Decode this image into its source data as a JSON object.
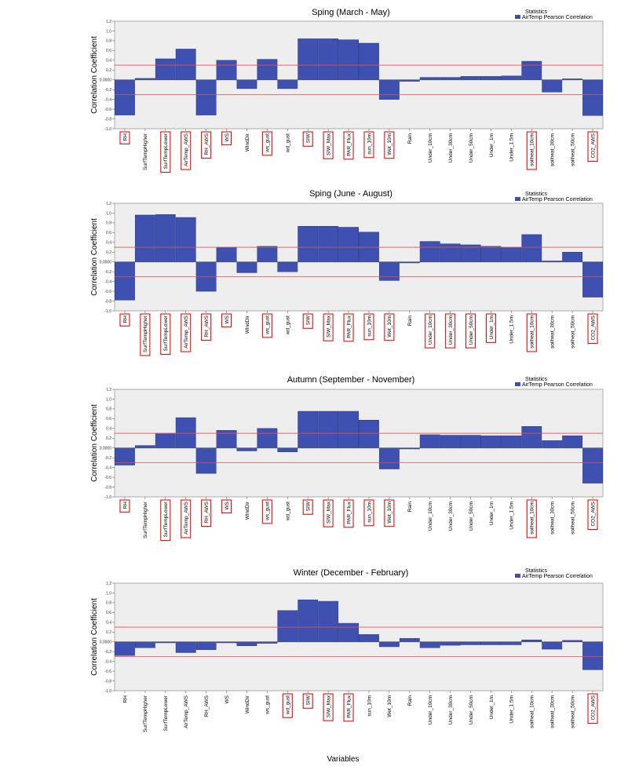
{
  "chart_data": [
    {
      "type": "bar",
      "title": "Sping (March - May)",
      "legend_title": "Statistics",
      "series": [
        {
          "name": "AirTemp Pearson Correlation",
          "values": [
            -0.72,
            0.03,
            0.43,
            0.63,
            -0.72,
            0.4,
            -0.18,
            0.42,
            -0.18,
            0.84,
            0.84,
            0.82,
            0.75,
            -0.4,
            -0.03,
            0.05,
            0.05,
            0.07,
            0.07,
            0.08,
            0.38,
            -0.25,
            0.02,
            -0.73
          ]
        }
      ],
      "categories": [
        "RH",
        "SurfTempHigher",
        "SurfTempLower",
        "AirTemp_AWS",
        "RH_AWS",
        "WS",
        "WindDir",
        "ws_gust",
        "wd_gust",
        "SIW",
        "SIW_Max",
        "PAR_Flux",
        "sun_10m",
        "Wet_10m",
        "Rain",
        "Under_10cm",
        "Under_30cm",
        "Under_50cm",
        "Under_1m",
        "Under_1.5m",
        "soilheat_10cm",
        "soilheat_30cm",
        "soilheat_50cm",
        "CO2_AWS"
      ],
      "highlighted": [
        "RH",
        "SurfTempLower",
        "AirTemp_AWS",
        "RH_AWS",
        "WS",
        "ws_gust",
        "SIW",
        "SIW_Max",
        "PAR_Flux",
        "sun_10m",
        "Wet_10m",
        "soilheat_10cm",
        "CO2_AWS"
      ],
      "xlabel": "Variables",
      "ylabel": "Correlation Coefficient",
      "ylim": [
        -1.0,
        1.2
      ],
      "yticks": [
        "1.2",
        "1.0",
        "0.8",
        "0.6",
        "0.4",
        "0.2",
        "0.0000",
        "-0.2",
        "-0.4",
        "-0.6",
        "-0.8",
        "-1.0"
      ],
      "reference_lines": [
        0.3,
        -0.3
      ],
      "colors": {
        "bar": "#3f51b0",
        "reference": "#e05050",
        "highlight": "#e01010",
        "plot_bg": "#eeeeee"
      }
    },
    {
      "type": "bar",
      "title": "Sping (June - August)",
      "legend_title": "Statistics",
      "series": [
        {
          "name": "AirTemp Pearson Correlation",
          "values": [
            -0.78,
            0.96,
            0.97,
            0.91,
            -0.6,
            0.3,
            -0.22,
            0.32,
            -0.2,
            0.73,
            0.73,
            0.71,
            0.61,
            -0.38,
            -0.02,
            0.42,
            0.37,
            0.35,
            0.32,
            0.3,
            0.56,
            0.02,
            0.2,
            -0.72
          ]
        }
      ],
      "categories": [
        "RH",
        "SurfTempHigher",
        "SurfTempLower",
        "AirTemp_AWS",
        "RH_AWS",
        "WS",
        "WindDir",
        "ws_gust",
        "wd_gust",
        "SIW",
        "SIW_Max",
        "PAR_Flux",
        "sun_10m",
        "Wet_10m",
        "Rain",
        "Under_10cm",
        "Under_30cm",
        "Under_50cm",
        "Under_1m",
        "Under_1.5m",
        "soilheat_10cm",
        "soilheat_30cm",
        "soilheat_50cm",
        "CO2_AWS"
      ],
      "highlighted": [
        "RH",
        "SurfTempHigher",
        "SurfTempLower",
        "AirTemp_AWS",
        "RH_AWS",
        "WS",
        "ws_gust",
        "SIW",
        "SIW_Max",
        "PAR_Flux",
        "sun_10m",
        "Wet_10m",
        "Under_10cm",
        "Under_30cm",
        "Under_50cm",
        "Under_1m",
        "soilheat_10cm",
        "CO2_AWS"
      ],
      "xlabel": "Variables",
      "ylabel": "Correlation Coefficient",
      "ylim": [
        -1.0,
        1.2
      ],
      "yticks": [
        "1.2",
        "1.0",
        "0.8",
        "0.6",
        "0.4",
        "0.2",
        "0.0000",
        "-0.2",
        "-0.4",
        "-0.6",
        "-0.8",
        "-1.0"
      ],
      "reference_lines": [
        0.3,
        -0.3
      ],
      "colors": {
        "bar": "#3f51b0",
        "reference": "#e05050",
        "highlight": "#e01010",
        "plot_bg": "#eeeeee"
      }
    },
    {
      "type": "bar",
      "title": "Autumn (September - November)",
      "legend_title": "Statistics",
      "series": [
        {
          "name": "AirTemp Pearson Correlation",
          "values": [
            -0.35,
            0.05,
            0.3,
            0.62,
            -0.52,
            0.36,
            -0.06,
            0.4,
            -0.08,
            0.75,
            0.75,
            0.75,
            0.57,
            -0.43,
            -0.02,
            0.27,
            0.26,
            0.26,
            0.25,
            0.25,
            0.44,
            0.15,
            0.25,
            -0.72
          ]
        }
      ],
      "categories": [
        "RH",
        "SurfTempHigher",
        "SurfTempLower",
        "AirTemp_AWS",
        "RH_AWS",
        "WS",
        "WindDir",
        "ws_gust",
        "wd_gust",
        "SIW",
        "SIW_Max",
        "PAR_Flux",
        "sun_10m",
        "Wet_10m",
        "Rain",
        "Under_10cm",
        "Under_30cm",
        "Under_50cm",
        "Under_1m",
        "Under_1.5m",
        "soilheat_10cm",
        "soilheat_30cm",
        "soilheat_50cm",
        "CO2_AWS"
      ],
      "highlighted": [
        "RH",
        "SurfTempLower",
        "AirTemp_AWS",
        "RH_AWS",
        "WS",
        "ws_gust",
        "SIW",
        "SIW_Max",
        "PAR_Flux",
        "sun_10m",
        "Wet_10m",
        "soilheat_10cm",
        "CO2_AWS"
      ],
      "xlabel": "Variables",
      "ylabel": "Correlation Coefficient",
      "ylim": [
        -1.0,
        1.2
      ],
      "yticks": [
        "1.2",
        "1.0",
        "0.8",
        "0.6",
        "0.4",
        "0.2",
        "0.0000",
        "-0.2",
        "-0.4",
        "-0.6",
        "-0.8",
        "-1.0"
      ],
      "reference_lines": [
        0.3,
        -0.3
      ],
      "colors": {
        "bar": "#3f51b0",
        "reference": "#e05050",
        "highlight": "#e01010",
        "plot_bg": "#eeeeee"
      }
    },
    {
      "type": "bar",
      "title": "Winter (December - February)",
      "legend_title": "Statistics",
      "series": [
        {
          "name": "AirTemp Pearson Correlation",
          "values": [
            -0.28,
            -0.12,
            -0.02,
            -0.22,
            -0.16,
            -0.02,
            -0.08,
            -0.03,
            0.64,
            0.86,
            0.83,
            0.38,
            0.15,
            -0.1,
            0.07,
            -0.12,
            -0.07,
            -0.06,
            -0.06,
            -0.06,
            0.04,
            -0.15,
            0.03,
            -0.57
          ]
        }
      ],
      "categories": [
        "RH",
        "SurfTempHigher",
        "SurfTempLower",
        "AirTemp_AWS",
        "RH_AWS",
        "WS",
        "WindDir",
        "ws_gust",
        "wd_gust",
        "SIW",
        "SIW_Max",
        "PAR_Flux",
        "sun_10m",
        "Wet_10m",
        "Rain",
        "Under_10cm",
        "Under_30cm",
        "Under_50cm",
        "Under_1m",
        "Under_1.5m",
        "soilheat_10cm",
        "soilheat_30cm",
        "soilheat_50cm",
        "CO2_AWS"
      ],
      "highlighted": [
        "wd_gust",
        "SIW",
        "SIW_Max",
        "PAR_Flux",
        "CO2_AWS"
      ],
      "xlabel": "Variables",
      "ylabel": "Correlation Coefficient",
      "ylim": [
        -1.0,
        1.2
      ],
      "yticks": [
        "1.2",
        "1.0",
        "0.8",
        "0.6",
        "0.4",
        "0.2",
        "0.0000",
        "-0.2",
        "-0.4",
        "-0.6",
        "-0.8",
        "-1.0"
      ],
      "reference_lines": [
        0.3,
        -0.3
      ],
      "colors": {
        "bar": "#3f51b0",
        "reference": "#e05050",
        "highlight": "#e01010",
        "plot_bg": "#eeeeee"
      }
    }
  ]
}
